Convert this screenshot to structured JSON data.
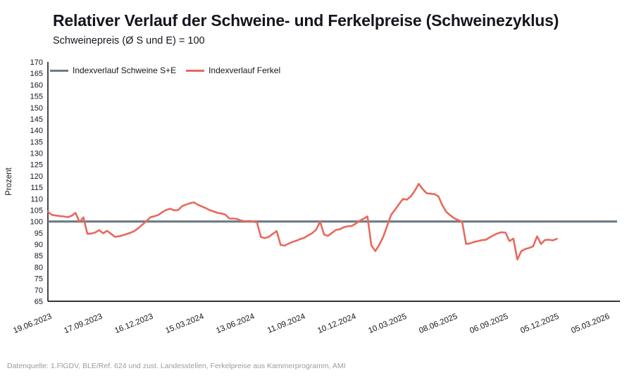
{
  "header": {
    "title": "Relativer Verlauf der Schweine- und Ferkelpreise (Schweinezyklus)",
    "subtitle": "Schweinepreis (Ø S und E) = 100"
  },
  "legend": {
    "items": [
      {
        "label": "Indexverlauf Schweine S+E",
        "color": "#6E7B87"
      },
      {
        "label": "Indexverlauf Ferkel",
        "color": "#E8695C"
      }
    ]
  },
  "chart_data": {
    "type": "line",
    "title": "Relativer Verlauf der Schweine- und Ferkelpreise (Schweinezyklus)",
    "subtitle": "Schweinepreis (Ø S und E) = 100",
    "xlabel": "",
    "ylabel": "Prozent",
    "ylim": [
      65,
      170
    ],
    "ytick_step": 5,
    "grid": false,
    "legend_position": "top-left-inside",
    "x_tick_labels": [
      "19.06.2023",
      "17.09.2023",
      "16.12.2023",
      "15.03.2024",
      "13.06.2024",
      "11.09.2024",
      "10.12.2024",
      "10.03.2025",
      "08.06.2025",
      "06.09.2025",
      "05.12.2025",
      "05.03.2026"
    ],
    "x_tick_interval_days": 90,
    "series": [
      {
        "name": "Indexverlauf Schweine S+E",
        "color": "#6E7B87",
        "style": "constant-reference-line",
        "constant_value": 100
      },
      {
        "name": "Indexverlauf Ferkel",
        "color": "#E8695C",
        "style": "line",
        "start_date": "19.06.2023",
        "interval": "weekly",
        "values": [
          104.3,
          102.9,
          102.6,
          102.4,
          102.2,
          101.9,
          102.5,
          103.8,
          99.8,
          101.8,
          94.6,
          94.7,
          95.2,
          96.2,
          94.8,
          95.9,
          94.6,
          93.3,
          93.5,
          94.0,
          94.5,
          95.1,
          95.9,
          97.2,
          98.7,
          100.2,
          101.9,
          102.3,
          102.9,
          104.1,
          105.1,
          105.6,
          104.9,
          105.0,
          106.7,
          107.4,
          108.0,
          108.4,
          107.4,
          106.6,
          105.9,
          105.0,
          104.4,
          103.8,
          103.5,
          103.0,
          101.3,
          101.3,
          101.1,
          100.4,
          100.1,
          100.2,
          100.0,
          99.6,
          93.2,
          92.7,
          93.3,
          94.6,
          95.8,
          89.7,
          89.4,
          90.3,
          91.0,
          91.6,
          92.3,
          92.9,
          93.9,
          94.9,
          96.4,
          100.0,
          94.3,
          93.7,
          95.0,
          96.3,
          96.6,
          97.5,
          97.9,
          98.0,
          99.0,
          100.3,
          101.2,
          102.2,
          89.5,
          87.0,
          89.8,
          93.3,
          98.0,
          102.9,
          105.2,
          107.6,
          109.9,
          109.6,
          111.0,
          113.5,
          116.5,
          114.2,
          112.4,
          112.2,
          112.0,
          111.0,
          107.1,
          104.2,
          102.7,
          101.4,
          100.6,
          100.0,
          90.2,
          90.4,
          91.0,
          91.4,
          91.8,
          92.0,
          93.0,
          94.0,
          94.8,
          95.3,
          95.1,
          91.4,
          92.5,
          83.3,
          87.0,
          87.9,
          88.4,
          89.1,
          93.5,
          90.1,
          91.9,
          92.0,
          91.7,
          92.4
        ]
      }
    ]
  },
  "footer": {
    "source": "Datenquelle: 1.FlGDV, BLE/Ref. 624 und zust. Landesstellen, Ferkelpreise aus Kammerprogramm, AMI"
  },
  "colors": {
    "background": "#ffffff",
    "axis": "#17171f",
    "tick_text": "#15151f",
    "footer_text": "#9b9b9b",
    "schweine_line": "#6E7B87",
    "ferkel_line": "#E8695C"
  }
}
